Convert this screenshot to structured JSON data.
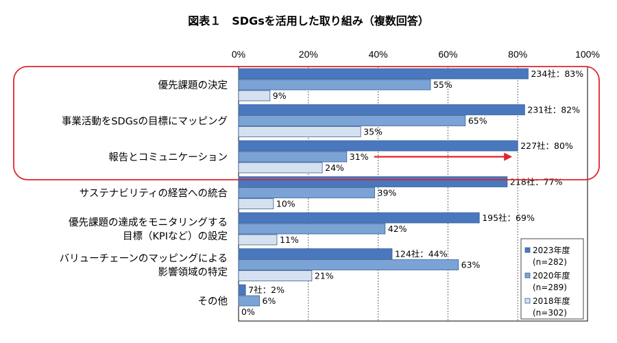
{
  "chart_data": {
    "type": "bar",
    "orientation": "horizontal",
    "title": "図表１　SDGsを活用した取り組み（複数回答）",
    "x_ticks": [
      "0%",
      "20%",
      "40%",
      "60%",
      "80%",
      "100%"
    ],
    "xlim": [
      0,
      100
    ],
    "grid": true,
    "legend_position": "bottom-right",
    "categories": [
      [
        "優先課題の決定"
      ],
      [
        "事業活動をSDGsの目標にマッピング"
      ],
      [
        "報告とコミュニケーション"
      ],
      [
        "サステナビリティの経営への統合"
      ],
      [
        "優先課題の達成をモニタリングする",
        "目標（KPIなど）の設定"
      ],
      [
        "バリューチェーンのマッピングによる",
        "影響領域の特定"
      ],
      [
        "その他"
      ]
    ],
    "series": [
      {
        "name": "2023年度",
        "name_sub": "(n=282)",
        "color": "#4a78be",
        "values": [
          83,
          82,
          80,
          77,
          69,
          44,
          2
        ],
        "labels": [
          "234社：83%",
          "231社：82%",
          "227社：80%",
          "218社：77%",
          "195社：69%",
          "124社：44%",
          "7社：2%"
        ]
      },
      {
        "name": "2020年度",
        "name_sub": "(n=289)",
        "color": "#7ba3d6",
        "values": [
          55,
          65,
          31,
          39,
          42,
          63,
          6
        ],
        "labels": [
          "55%",
          "65%",
          "31%",
          "39%",
          "42%",
          "63%",
          "6%"
        ]
      },
      {
        "name": "2018年度",
        "name_sub": "(n=302)",
        "color": "#d5e1f0",
        "values": [
          9,
          35,
          24,
          10,
          11,
          21,
          0
        ],
        "labels": [
          "9%",
          "35%",
          "24%",
          "10%",
          "11%",
          "21%",
          "0%"
        ]
      }
    ],
    "highlight": {
      "box_color": "#e0242b",
      "box_categories": [
        0,
        1,
        2
      ],
      "arrow_category": 2,
      "arrow_from_series": 1,
      "arrow_to_value": 80
    }
  }
}
